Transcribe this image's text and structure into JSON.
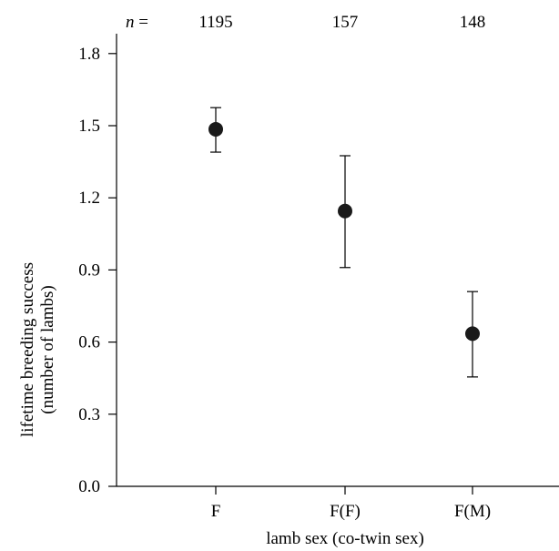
{
  "chart_data": {
    "type": "scatter",
    "categories": [
      "F",
      "F(F)",
      "F(M)"
    ],
    "values": [
      1.485,
      1.145,
      0.635
    ],
    "error_low": [
      1.39,
      0.91,
      0.455
    ],
    "error_high": [
      1.575,
      1.375,
      0.81
    ],
    "sample_sizes": [
      "1195",
      "157",
      "148"
    ],
    "sample_prefix_italic": "n",
    "sample_prefix_rest": " =",
    "xlabel": "lamb sex (co-twin sex)",
    "ylabel_line1": "lifetime breeding success",
    "ylabel_line2": "(number of lambs)",
    "ylim": [
      0.0,
      2.0
    ],
    "yticks": [
      "0.0",
      "0.3",
      "0.6",
      "0.9",
      "1.2",
      "1.5",
      "1.8"
    ],
    "marker_color": "#1a1a1a",
    "grid": false
  }
}
